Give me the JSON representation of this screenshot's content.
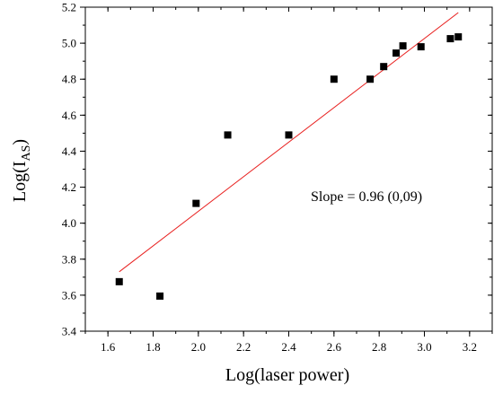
{
  "chart_data": {
    "type": "scatter",
    "xlabel": "Log(laser power)",
    "ylabel": {
      "main": "Log(I",
      "sub": "AS",
      "close": ")"
    },
    "xlim": [
      1.5,
      3.3
    ],
    "ylim": [
      3.4,
      5.2
    ],
    "x_ticks": [
      1.6,
      1.8,
      2.0,
      2.2,
      2.4,
      2.6,
      2.8,
      3.0,
      3.2
    ],
    "x_tick_labels": [
      "1.6",
      "1.8",
      "2.0",
      "2.2",
      "2.4",
      "2.6",
      "2.8",
      "3.0",
      "3.2"
    ],
    "y_ticks": [
      3.4,
      3.6,
      3.8,
      4.0,
      4.2,
      4.4,
      4.6,
      4.8,
      5.0,
      5.2
    ],
    "y_tick_labels": [
      "3.4",
      "3.6",
      "3.8",
      "4.0",
      "4.2",
      "4.4",
      "4.6",
      "4.8",
      "5.0",
      "5.2"
    ],
    "grid": false,
    "points": [
      {
        "x": 1.65,
        "y": 3.675
      },
      {
        "x": 1.83,
        "y": 3.595
      },
      {
        "x": 1.99,
        "y": 4.11
      },
      {
        "x": 2.13,
        "y": 4.49
      },
      {
        "x": 2.4,
        "y": 4.49
      },
      {
        "x": 2.6,
        "y": 4.8
      },
      {
        "x": 2.76,
        "y": 4.8
      },
      {
        "x": 2.82,
        "y": 4.87
      },
      {
        "x": 2.875,
        "y": 4.945
      },
      {
        "x": 2.905,
        "y": 4.985
      },
      {
        "x": 2.985,
        "y": 4.98
      },
      {
        "x": 3.115,
        "y": 5.025
      },
      {
        "x": 3.15,
        "y": 5.035
      }
    ],
    "fit_line": {
      "x": [
        1.65,
        3.15
      ],
      "y": [
        3.73,
        5.17
      ],
      "color": "#e8201f"
    },
    "marker_color": "#000000",
    "annotation": "Slope = 0.96 (0,09)"
  }
}
